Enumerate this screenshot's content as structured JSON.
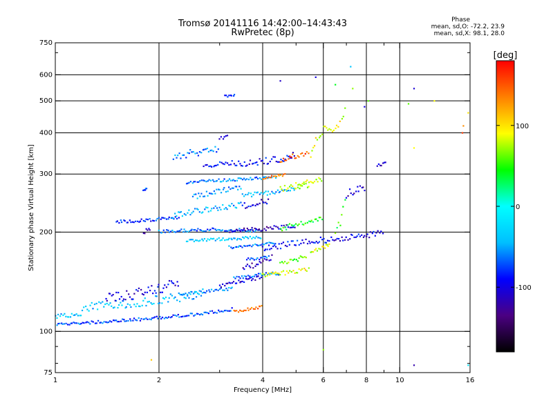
{
  "header": {
    "title_line1": "Tromsø 20141116 14:42:00–14:43:43",
    "title_line2": "RwPretec (8p)"
  },
  "phase_box": {
    "title": "Phase",
    "line1": "mean, sd,O: -72.2, 23.9",
    "line2": "mean, sd,X: 98.1, 28.0"
  },
  "chart_data": {
    "type": "scatter",
    "xlabel": "Frequency [MHz]",
    "ylabel": "Stationary phase Virtual Height [km]",
    "xscale": "log",
    "yscale": "log",
    "xlim": [
      1,
      16
    ],
    "ylim": [
      75,
      750
    ],
    "xticks": [
      1,
      2,
      4,
      6,
      8,
      10,
      16
    ],
    "xtick_labels": [
      "1",
      "2",
      "4",
      "6",
      "8",
      "10",
      "16"
    ],
    "xgrid": [
      2,
      4,
      6,
      8,
      10
    ],
    "yticks": [
      75,
      100,
      200,
      300,
      400,
      500,
      600,
      750
    ],
    "ytick_labels": [
      "75",
      "100",
      "200",
      "300",
      "400",
      "500",
      "600",
      "750"
    ],
    "ygrid": [
      100,
      200,
      300,
      400,
      500,
      600
    ],
    "grid": true,
    "colorbar": {
      "label": "[deg]",
      "range": [
        -180,
        180
      ],
      "ticks": [
        100,
        0,
        -100
      ],
      "tick_labels": [
        "100",
        "0",
        "-100"
      ],
      "colors": [
        "#000000",
        "#4b0082",
        "#0000ff",
        "#00bfff",
        "#00ffff",
        "#00ff00",
        "#ffff00",
        "#ff8000",
        "#ff0000"
      ]
    },
    "traces": [
      {
        "x": [
          1.0,
          1.4,
          1.8,
          2.2,
          2.6,
          3.0,
          3.3
        ],
        "y": [
          105,
          107,
          109,
          111,
          113,
          115,
          117
        ],
        "phase": -75,
        "spread": 2
      },
      {
        "x": [
          3.3,
          3.5,
          3.8,
          4.0
        ],
        "y": [
          115,
          116,
          118,
          119
        ],
        "phase": 145,
        "spread": 2
      },
      {
        "x": [
          1.0,
          1.2
        ],
        "y": [
          111,
          113
        ],
        "phase": -40,
        "spread": 3
      },
      {
        "x": [
          1.2,
          1.8,
          2.3,
          2.7
        ],
        "y": [
          118,
          123,
          127,
          131
        ],
        "phase": -40,
        "spread": 6
      },
      {
        "x": [
          1.4,
          1.7,
          2.0,
          2.3
        ],
        "y": [
          125,
          130,
          135,
          140
        ],
        "phase": -100,
        "spread": 8
      },
      {
        "x": [
          2.3,
          2.7,
          3.0,
          3.3
        ],
        "y": [
          130,
          132,
          134,
          135
        ],
        "phase": -50,
        "spread": 2
      },
      {
        "x": [
          3.0,
          3.3,
          3.6,
          4.0
        ],
        "y": [
          137,
          140,
          143,
          146
        ],
        "phase": -105,
        "spread": 3
      },
      {
        "x": [
          3.3,
          3.7,
          4.0,
          4.5
        ],
        "y": [
          145,
          147,
          149,
          150
        ],
        "phase": -60,
        "spread": 2
      },
      {
        "x": [
          4.0,
          4.5,
          5.0,
          5.5
        ],
        "y": [
          148,
          150,
          152,
          154
        ],
        "phase": 90,
        "spread": 3
      },
      {
        "x": [
          3.5,
          4.0,
          4.3
        ],
        "y": [
          155,
          162,
          168
        ],
        "phase": -110,
        "spread": 4
      },
      {
        "x": [
          3.6,
          4.2
        ],
        "y": [
          165,
          168
        ],
        "phase": -70,
        "spread": 2
      },
      {
        "x": [
          4.5,
          5.0,
          5.4
        ],
        "y": [
          160,
          165,
          170
        ],
        "phase": 60,
        "spread": 3
      },
      {
        "x": [
          4.0,
          4.5,
          5.0,
          5.5,
          6.0
        ],
        "y": [
          178,
          182,
          186,
          188,
          190
        ],
        "phase": -90,
        "spread": 4
      },
      {
        "x": [
          5.5,
          6.0,
          6.3
        ],
        "y": [
          175,
          180,
          184
        ],
        "phase": 80,
        "spread": 3
      },
      {
        "x": [
          2.4,
          2.8,
          3.2,
          3.6,
          4.0
        ],
        "y": [
          188,
          190,
          191,
          192,
          193
        ],
        "phase": -35,
        "spread": 2
      },
      {
        "x": [
          3.2,
          3.6,
          4.0,
          4.4
        ],
        "y": [
          180,
          182,
          184,
          185
        ],
        "phase": -60,
        "spread": 2
      },
      {
        "x": [
          6.0,
          7.0,
          8.0,
          9.0
        ],
        "y": [
          188,
          192,
          196,
          200
        ],
        "phase": -100,
        "spread": 4
      },
      {
        "x": [
          1.5,
          1.8,
          2.0,
          2.3
        ],
        "y": [
          215,
          217,
          219,
          221
        ],
        "phase": -80,
        "spread": 2
      },
      {
        "x": [
          2.0,
          2.3,
          2.6,
          3.0,
          3.2,
          3.5,
          4.0
        ],
        "y": [
          201,
          202,
          203,
          204,
          203,
          203,
          202
        ],
        "phase": -65,
        "spread": 2
      },
      {
        "x": [
          1.8,
          1.9
        ],
        "y": [
          200,
          205
        ],
        "phase": -110,
        "spread": 3
      },
      {
        "x": [
          3.2,
          3.6,
          4.0,
          4.5,
          5.0
        ],
        "y": [
          200,
          203,
          205,
          207,
          208
        ],
        "phase": -115,
        "spread": 3
      },
      {
        "x": [
          4.5,
          5.0,
          5.5,
          6.0
        ],
        "y": [
          205,
          210,
          215,
          222
        ],
        "phase": 40,
        "spread": 4
      },
      {
        "x": [
          2.2,
          2.6,
          3.0,
          3.5
        ],
        "y": [
          225,
          232,
          238,
          242
        ],
        "phase": -45,
        "spread": 4
      },
      {
        "x": [
          3.5,
          3.8,
          4.2
        ],
        "y": [
          240,
          245,
          250
        ],
        "phase": -100,
        "spread": 4
      },
      {
        "x": [
          2.5,
          2.8,
          3.1,
          3.5
        ],
        "y": [
          255,
          262,
          268,
          272
        ],
        "phase": -50,
        "spread": 4
      },
      {
        "x": [
          3.5,
          4.0,
          4.5,
          5.0
        ],
        "y": [
          258,
          262,
          266,
          270
        ],
        "phase": -45,
        "spread": 3
      },
      {
        "x": [
          4.5,
          5.0,
          5.5
        ],
        "y": [
          270,
          275,
          278
        ],
        "phase": 75,
        "spread": 4
      },
      {
        "x": [
          2.4,
          2.8,
          3.2,
          3.6,
          4.0,
          4.4
        ],
        "y": [
          283,
          286,
          288,
          290,
          292,
          293
        ],
        "phase": -60,
        "spread": 2
      },
      {
        "x": [
          4.0,
          4.3,
          4.7
        ],
        "y": [
          292,
          295,
          298
        ],
        "phase": 140,
        "spread": 2
      },
      {
        "x": [
          5.0,
          5.5,
          6.0
        ],
        "y": [
          280,
          285,
          290
        ],
        "phase": 90,
        "spread": 3
      },
      {
        "x": [
          1.8,
          1.85
        ],
        "y": [
          270,
          272
        ],
        "phase": -70,
        "spread": 2
      },
      {
        "x": [
          2.7,
          3.0,
          3.3
        ],
        "y": [
          318,
          322,
          326
        ],
        "phase": -85,
        "spread": 3
      },
      {
        "x": [
          3.3,
          3.8,
          4.2,
          4.7,
          5.0
        ],
        "y": [
          320,
          325,
          330,
          338,
          345
        ],
        "phase": -95,
        "spread": 5
      },
      {
        "x": [
          4.5,
          5.0,
          5.5
        ],
        "y": [
          330,
          340,
          350
        ],
        "phase": 150,
        "spread": 4
      },
      {
        "x": [
          2.2,
          2.6,
          3.0
        ],
        "y": [
          340,
          350,
          360
        ],
        "phase": -60,
        "spread": 5
      },
      {
        "x": [
          3.0,
          3.2
        ],
        "y": [
          385,
          395
        ],
        "phase": -100,
        "spread": 3
      },
      {
        "x": [
          3.1,
          3.35
        ],
        "y": [
          515,
          520
        ],
        "phase": -90,
        "spread": 2
      },
      {
        "x": [
          5.5,
          6.0,
          6.5,
          7.0
        ],
        "y": [
          350,
          400,
          430,
          460
        ],
        "phase": 90,
        "spread": 10
      },
      {
        "x": [
          6.5,
          7.0
        ],
        "y": [
          200,
          250
        ],
        "phase": 50,
        "spread": 10
      },
      {
        "x": [
          8.6,
          9.2
        ],
        "y": [
          320,
          323
        ],
        "phase": -110,
        "spread": 2
      },
      {
        "x": [
          7.0,
          8.0
        ],
        "y": [
          260,
          275
        ],
        "phase": -110,
        "spread": 6
      }
    ],
    "scattered": [
      {
        "x": 11.0,
        "y": 545,
        "phase": -105
      },
      {
        "x": 10.6,
        "y": 490,
        "phase": 60
      },
      {
        "x": 12.6,
        "y": 500,
        "phase": 90
      },
      {
        "x": 15.2,
        "y": 400,
        "phase": 160
      },
      {
        "x": 15.3,
        "y": 420,
        "phase": 130
      },
      {
        "x": 11.0,
        "y": 360,
        "phase": 90
      },
      {
        "x": 15.8,
        "y": 460,
        "phase": 100
      },
      {
        "x": 11.0,
        "y": 79,
        "phase": -120
      },
      {
        "x": 15.8,
        "y": 79,
        "phase": -20
      },
      {
        "x": 1.9,
        "y": 82,
        "phase": 110
      },
      {
        "x": 5.7,
        "y": 590,
        "phase": -100
      },
      {
        "x": 7.2,
        "y": 635,
        "phase": -40
      },
      {
        "x": 7.3,
        "y": 545,
        "phase": 70
      },
      {
        "x": 7.9,
        "y": 480,
        "phase": -100
      },
      {
        "x": 8.1,
        "y": 500,
        "phase": 60
      },
      {
        "x": 6.0,
        "y": 88,
        "phase": 70
      },
      {
        "x": 6.5,
        "y": 560,
        "phase": 40
      },
      {
        "x": 4.5,
        "y": 575,
        "phase": -110
      }
    ]
  }
}
